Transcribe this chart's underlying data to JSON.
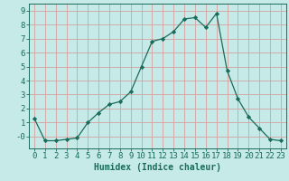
{
  "x": [
    0,
    1,
    2,
    3,
    4,
    5,
    6,
    7,
    8,
    9,
    10,
    11,
    12,
    13,
    14,
    15,
    16,
    17,
    18,
    19,
    20,
    21,
    22,
    23
  ],
  "y": [
    1.3,
    -0.3,
    -0.3,
    -0.2,
    -0.1,
    1.0,
    1.7,
    2.3,
    2.5,
    3.2,
    5.0,
    6.8,
    7.0,
    7.5,
    8.4,
    8.5,
    7.8,
    8.8,
    4.7,
    2.7,
    1.4,
    0.6,
    -0.2,
    -0.3
  ],
  "line_color": "#1a6b5a",
  "marker": "D",
  "marker_size": 2.2,
  "bg_color": "#c5eae8",
  "grid_color": "#d4a0a0",
  "xlabel": "Humidex (Indice chaleur)",
  "xlim": [
    -0.5,
    23.5
  ],
  "ylim": [
    -0.85,
    9.5
  ],
  "yticks": [
    0,
    1,
    2,
    3,
    4,
    5,
    6,
    7,
    8,
    9
  ],
  "ytick_labels": [
    "-0",
    "1",
    "2",
    "3",
    "4",
    "5",
    "6",
    "7",
    "8",
    "9"
  ],
  "xticks": [
    0,
    1,
    2,
    3,
    4,
    5,
    6,
    7,
    8,
    9,
    10,
    11,
    12,
    13,
    14,
    15,
    16,
    17,
    18,
    19,
    20,
    21,
    22,
    23
  ],
  "label_fontsize": 7,
  "tick_fontsize": 6.5
}
